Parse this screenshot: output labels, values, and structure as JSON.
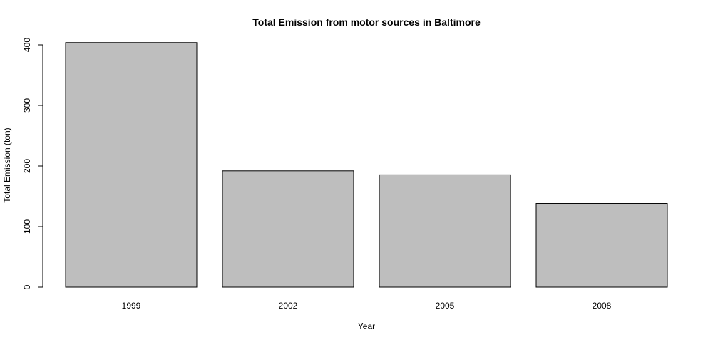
{
  "chart_data": {
    "type": "bar",
    "title": "Total Emission from motor sources in Baltimore",
    "xlabel": "Year",
    "ylabel": "Total Emission (ton)",
    "categories": [
      "1999",
      "2002",
      "2005",
      "2008"
    ],
    "values": [
      403.8,
      192.0,
      185.4,
      138.2
    ],
    "ylim": [
      0,
      400
    ],
    "yticks": [
      "0",
      "100",
      "200",
      "300",
      "400"
    ],
    "grid": false,
    "bar_color": "#bebebe",
    "bar_border_color": "#000000"
  }
}
